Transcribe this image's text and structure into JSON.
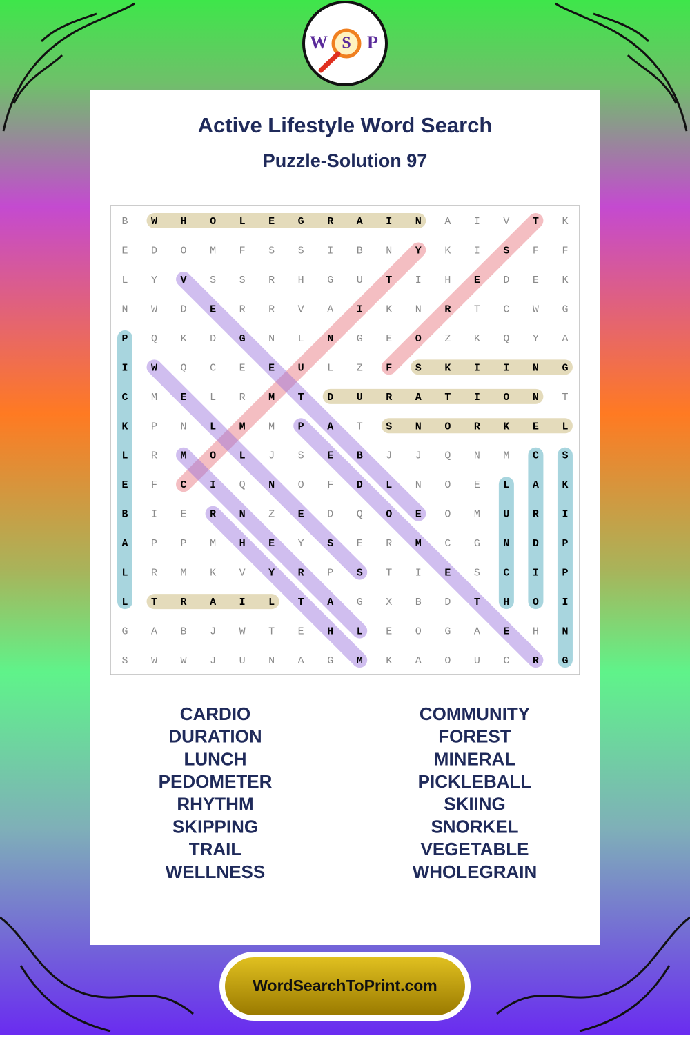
{
  "logo": {
    "letters": [
      "W",
      "S",
      "P"
    ]
  },
  "header": {
    "title": "Active Lifestyle Word Search",
    "subtitle": "Puzzle-Solution 97"
  },
  "grid": {
    "rows": [
      [
        "B",
        "W",
        "H",
        "O",
        "L",
        "E",
        "G",
        "R",
        "A",
        "I",
        "N",
        "A",
        "I",
        "V",
        "T",
        "K"
      ],
      [
        "E",
        "D",
        "O",
        "M",
        "F",
        "S",
        "S",
        "I",
        "B",
        "N",
        "Y",
        "K",
        "I",
        "S",
        "F",
        "F"
      ],
      [
        "L",
        "Y",
        "V",
        "S",
        "S",
        "R",
        "H",
        "G",
        "U",
        "T",
        "I",
        "H",
        "E",
        "D",
        "E",
        "K"
      ],
      [
        "N",
        "W",
        "D",
        "E",
        "R",
        "R",
        "V",
        "A",
        "I",
        "K",
        "N",
        "R",
        "T",
        "C",
        "W",
        "G"
      ],
      [
        "P",
        "Q",
        "K",
        "D",
        "G",
        "N",
        "L",
        "N",
        "G",
        "E",
        "O",
        "Z",
        "K",
        "Q",
        "Y",
        "A"
      ],
      [
        "I",
        "W",
        "Q",
        "C",
        "E",
        "E",
        "U",
        "L",
        "Z",
        "F",
        "S",
        "K",
        "I",
        "I",
        "N",
        "G"
      ],
      [
        "C",
        "M",
        "E",
        "L",
        "R",
        "M",
        "T",
        "D",
        "U",
        "R",
        "A",
        "T",
        "I",
        "O",
        "N",
        "T"
      ],
      [
        "K",
        "P",
        "N",
        "L",
        "M",
        "M",
        "P",
        "A",
        "T",
        "S",
        "N",
        "O",
        "R",
        "K",
        "E",
        "L"
      ],
      [
        "L",
        "R",
        "M",
        "O",
        "L",
        "J",
        "S",
        "E",
        "B",
        "J",
        "J",
        "Q",
        "N",
        "M",
        "C",
        "S"
      ],
      [
        "E",
        "F",
        "C",
        "I",
        "Q",
        "N",
        "O",
        "F",
        "D",
        "L",
        "N",
        "O",
        "E",
        "L",
        "A",
        "K"
      ],
      [
        "B",
        "I",
        "E",
        "R",
        "N",
        "Z",
        "E",
        "D",
        "Q",
        "O",
        "E",
        "O",
        "M",
        "U",
        "R",
        "I"
      ],
      [
        "A",
        "P",
        "P",
        "M",
        "H",
        "E",
        "Y",
        "S",
        "E",
        "R",
        "M",
        "C",
        "G",
        "N",
        "D",
        "P"
      ],
      [
        "L",
        "R",
        "M",
        "K",
        "V",
        "Y",
        "R",
        "P",
        "S",
        "T",
        "I",
        "E",
        "S",
        "C",
        "I",
        "P"
      ],
      [
        "L",
        "T",
        "R",
        "A",
        "I",
        "L",
        "T",
        "A",
        "G",
        "X",
        "B",
        "D",
        "T",
        "H",
        "O",
        "I"
      ],
      [
        "G",
        "A",
        "B",
        "J",
        "W",
        "T",
        "E",
        "H",
        "L",
        "E",
        "O",
        "G",
        "A",
        "E",
        "H",
        "N"
      ],
      [
        "S",
        "W",
        "W",
        "J",
        "U",
        "N",
        "A",
        "G",
        "M",
        "K",
        "A",
        "O",
        "U",
        "C",
        "R",
        "G"
      ]
    ]
  },
  "word_list": {
    "left": [
      "CARDIO",
      "DURATION",
      "LUNCH",
      "PEDOMETER",
      "RHYTHM",
      "SKIPPING",
      "TRAIL",
      "WELLNESS"
    ],
    "right": [
      "COMMUNITY",
      "FOREST",
      "MINERAL",
      "PICKLEBALL",
      "SKIING",
      "SNORKEL",
      "VEGETABLE",
      "WHOLEGRAIN"
    ]
  },
  "footer": {
    "site": "WordSearchToPrint.com"
  }
}
